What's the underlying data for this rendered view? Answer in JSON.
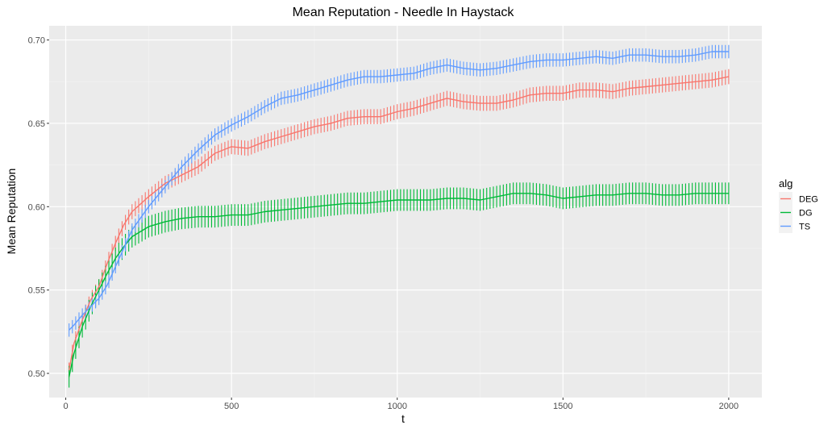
{
  "chart_data": {
    "type": "line",
    "title": "Mean Reputation - Needle In Haystack",
    "xlabel": "t",
    "ylabel": "Mean Reputation",
    "xlim": [
      -50,
      2100
    ],
    "ylim": [
      0.4855,
      0.7085
    ],
    "x_ticks": [
      0,
      500,
      1000,
      1500,
      2000
    ],
    "y_ticks": [
      0.5,
      0.55,
      0.6,
      0.65,
      0.7
    ],
    "x_tick_labels": [
      "0",
      "500",
      "1000",
      "1500",
      "2000"
    ],
    "y_tick_labels": [
      "0.50",
      "0.55",
      "0.60",
      "0.65",
      "0.70"
    ],
    "grid": true,
    "legend": {
      "title": "alg",
      "position": "right"
    },
    "error_bars": true,
    "series": [
      {
        "name": "DEG",
        "color": "#F8766D",
        "error": 0.0045,
        "points": [
          [
            10,
            0.502
          ],
          [
            25,
            0.518
          ],
          [
            50,
            0.532
          ],
          [
            75,
            0.544
          ],
          [
            100,
            0.552
          ],
          [
            125,
            0.566
          ],
          [
            150,
            0.578
          ],
          [
            175,
            0.589
          ],
          [
            200,
            0.597
          ],
          [
            250,
            0.606
          ],
          [
            300,
            0.614
          ],
          [
            350,
            0.619
          ],
          [
            400,
            0.624
          ],
          [
            450,
            0.632
          ],
          [
            500,
            0.636
          ],
          [
            550,
            0.635
          ],
          [
            600,
            0.639
          ],
          [
            650,
            0.642
          ],
          [
            700,
            0.645
          ],
          [
            750,
            0.648
          ],
          [
            800,
            0.65
          ],
          [
            850,
            0.653
          ],
          [
            900,
            0.654
          ],
          [
            950,
            0.654
          ],
          [
            1000,
            0.657
          ],
          [
            1050,
            0.659
          ],
          [
            1100,
            0.662
          ],
          [
            1150,
            0.665
          ],
          [
            1200,
            0.663
          ],
          [
            1250,
            0.662
          ],
          [
            1300,
            0.662
          ],
          [
            1350,
            0.664
          ],
          [
            1400,
            0.667
          ],
          [
            1450,
            0.668
          ],
          [
            1500,
            0.668
          ],
          [
            1550,
            0.67
          ],
          [
            1600,
            0.67
          ],
          [
            1650,
            0.669
          ],
          [
            1700,
            0.671
          ],
          [
            1750,
            0.672
          ],
          [
            1800,
            0.673
          ],
          [
            1850,
            0.674
          ],
          [
            1900,
            0.675
          ],
          [
            1950,
            0.676
          ],
          [
            2000,
            0.678
          ]
        ]
      },
      {
        "name": "DG",
        "color": "#00BA38",
        "error": 0.0065,
        "points": [
          [
            10,
            0.498
          ],
          [
            25,
            0.512
          ],
          [
            50,
            0.528
          ],
          [
            75,
            0.54
          ],
          [
            100,
            0.55
          ],
          [
            125,
            0.56
          ],
          [
            150,
            0.569
          ],
          [
            175,
            0.576
          ],
          [
            200,
            0.582
          ],
          [
            250,
            0.588
          ],
          [
            300,
            0.591
          ],
          [
            350,
            0.593
          ],
          [
            400,
            0.594
          ],
          [
            450,
            0.594
          ],
          [
            500,
            0.595
          ],
          [
            550,
            0.595
          ],
          [
            600,
            0.597
          ],
          [
            650,
            0.598
          ],
          [
            700,
            0.599
          ],
          [
            750,
            0.6
          ],
          [
            800,
            0.601
          ],
          [
            850,
            0.602
          ],
          [
            900,
            0.602
          ],
          [
            950,
            0.603
          ],
          [
            1000,
            0.604
          ],
          [
            1050,
            0.604
          ],
          [
            1100,
            0.604
          ],
          [
            1150,
            0.605
          ],
          [
            1200,
            0.605
          ],
          [
            1250,
            0.604
          ],
          [
            1300,
            0.606
          ],
          [
            1350,
            0.608
          ],
          [
            1400,
            0.608
          ],
          [
            1450,
            0.607
          ],
          [
            1500,
            0.605
          ],
          [
            1550,
            0.606
          ],
          [
            1600,
            0.607
          ],
          [
            1650,
            0.607
          ],
          [
            1700,
            0.608
          ],
          [
            1750,
            0.608
          ],
          [
            1800,
            0.607
          ],
          [
            1850,
            0.607
          ],
          [
            1900,
            0.608
          ],
          [
            1950,
            0.608
          ],
          [
            2000,
            0.608
          ]
        ]
      },
      {
        "name": "TS",
        "color": "#619CFF",
        "error": 0.004,
        "points": [
          [
            10,
            0.526
          ],
          [
            25,
            0.529
          ],
          [
            50,
            0.535
          ],
          [
            75,
            0.54
          ],
          [
            100,
            0.545
          ],
          [
            125,
            0.553
          ],
          [
            150,
            0.564
          ],
          [
            175,
            0.575
          ],
          [
            200,
            0.586
          ],
          [
            250,
            0.6
          ],
          [
            300,
            0.612
          ],
          [
            350,
            0.624
          ],
          [
            400,
            0.634
          ],
          [
            450,
            0.643
          ],
          [
            500,
            0.649
          ],
          [
            550,
            0.654
          ],
          [
            600,
            0.66
          ],
          [
            650,
            0.665
          ],
          [
            700,
            0.667
          ],
          [
            750,
            0.67
          ],
          [
            800,
            0.673
          ],
          [
            850,
            0.676
          ],
          [
            900,
            0.678
          ],
          [
            950,
            0.678
          ],
          [
            1000,
            0.679
          ],
          [
            1050,
            0.68
          ],
          [
            1100,
            0.683
          ],
          [
            1150,
            0.685
          ],
          [
            1200,
            0.683
          ],
          [
            1250,
            0.682
          ],
          [
            1300,
            0.683
          ],
          [
            1350,
            0.685
          ],
          [
            1400,
            0.687
          ],
          [
            1450,
            0.688
          ],
          [
            1500,
            0.688
          ],
          [
            1550,
            0.689
          ],
          [
            1600,
            0.69
          ],
          [
            1650,
            0.689
          ],
          [
            1700,
            0.691
          ],
          [
            1750,
            0.691
          ],
          [
            1800,
            0.69
          ],
          [
            1850,
            0.69
          ],
          [
            1900,
            0.691
          ],
          [
            1950,
            0.693
          ],
          [
            2000,
            0.693
          ]
        ]
      }
    ]
  }
}
